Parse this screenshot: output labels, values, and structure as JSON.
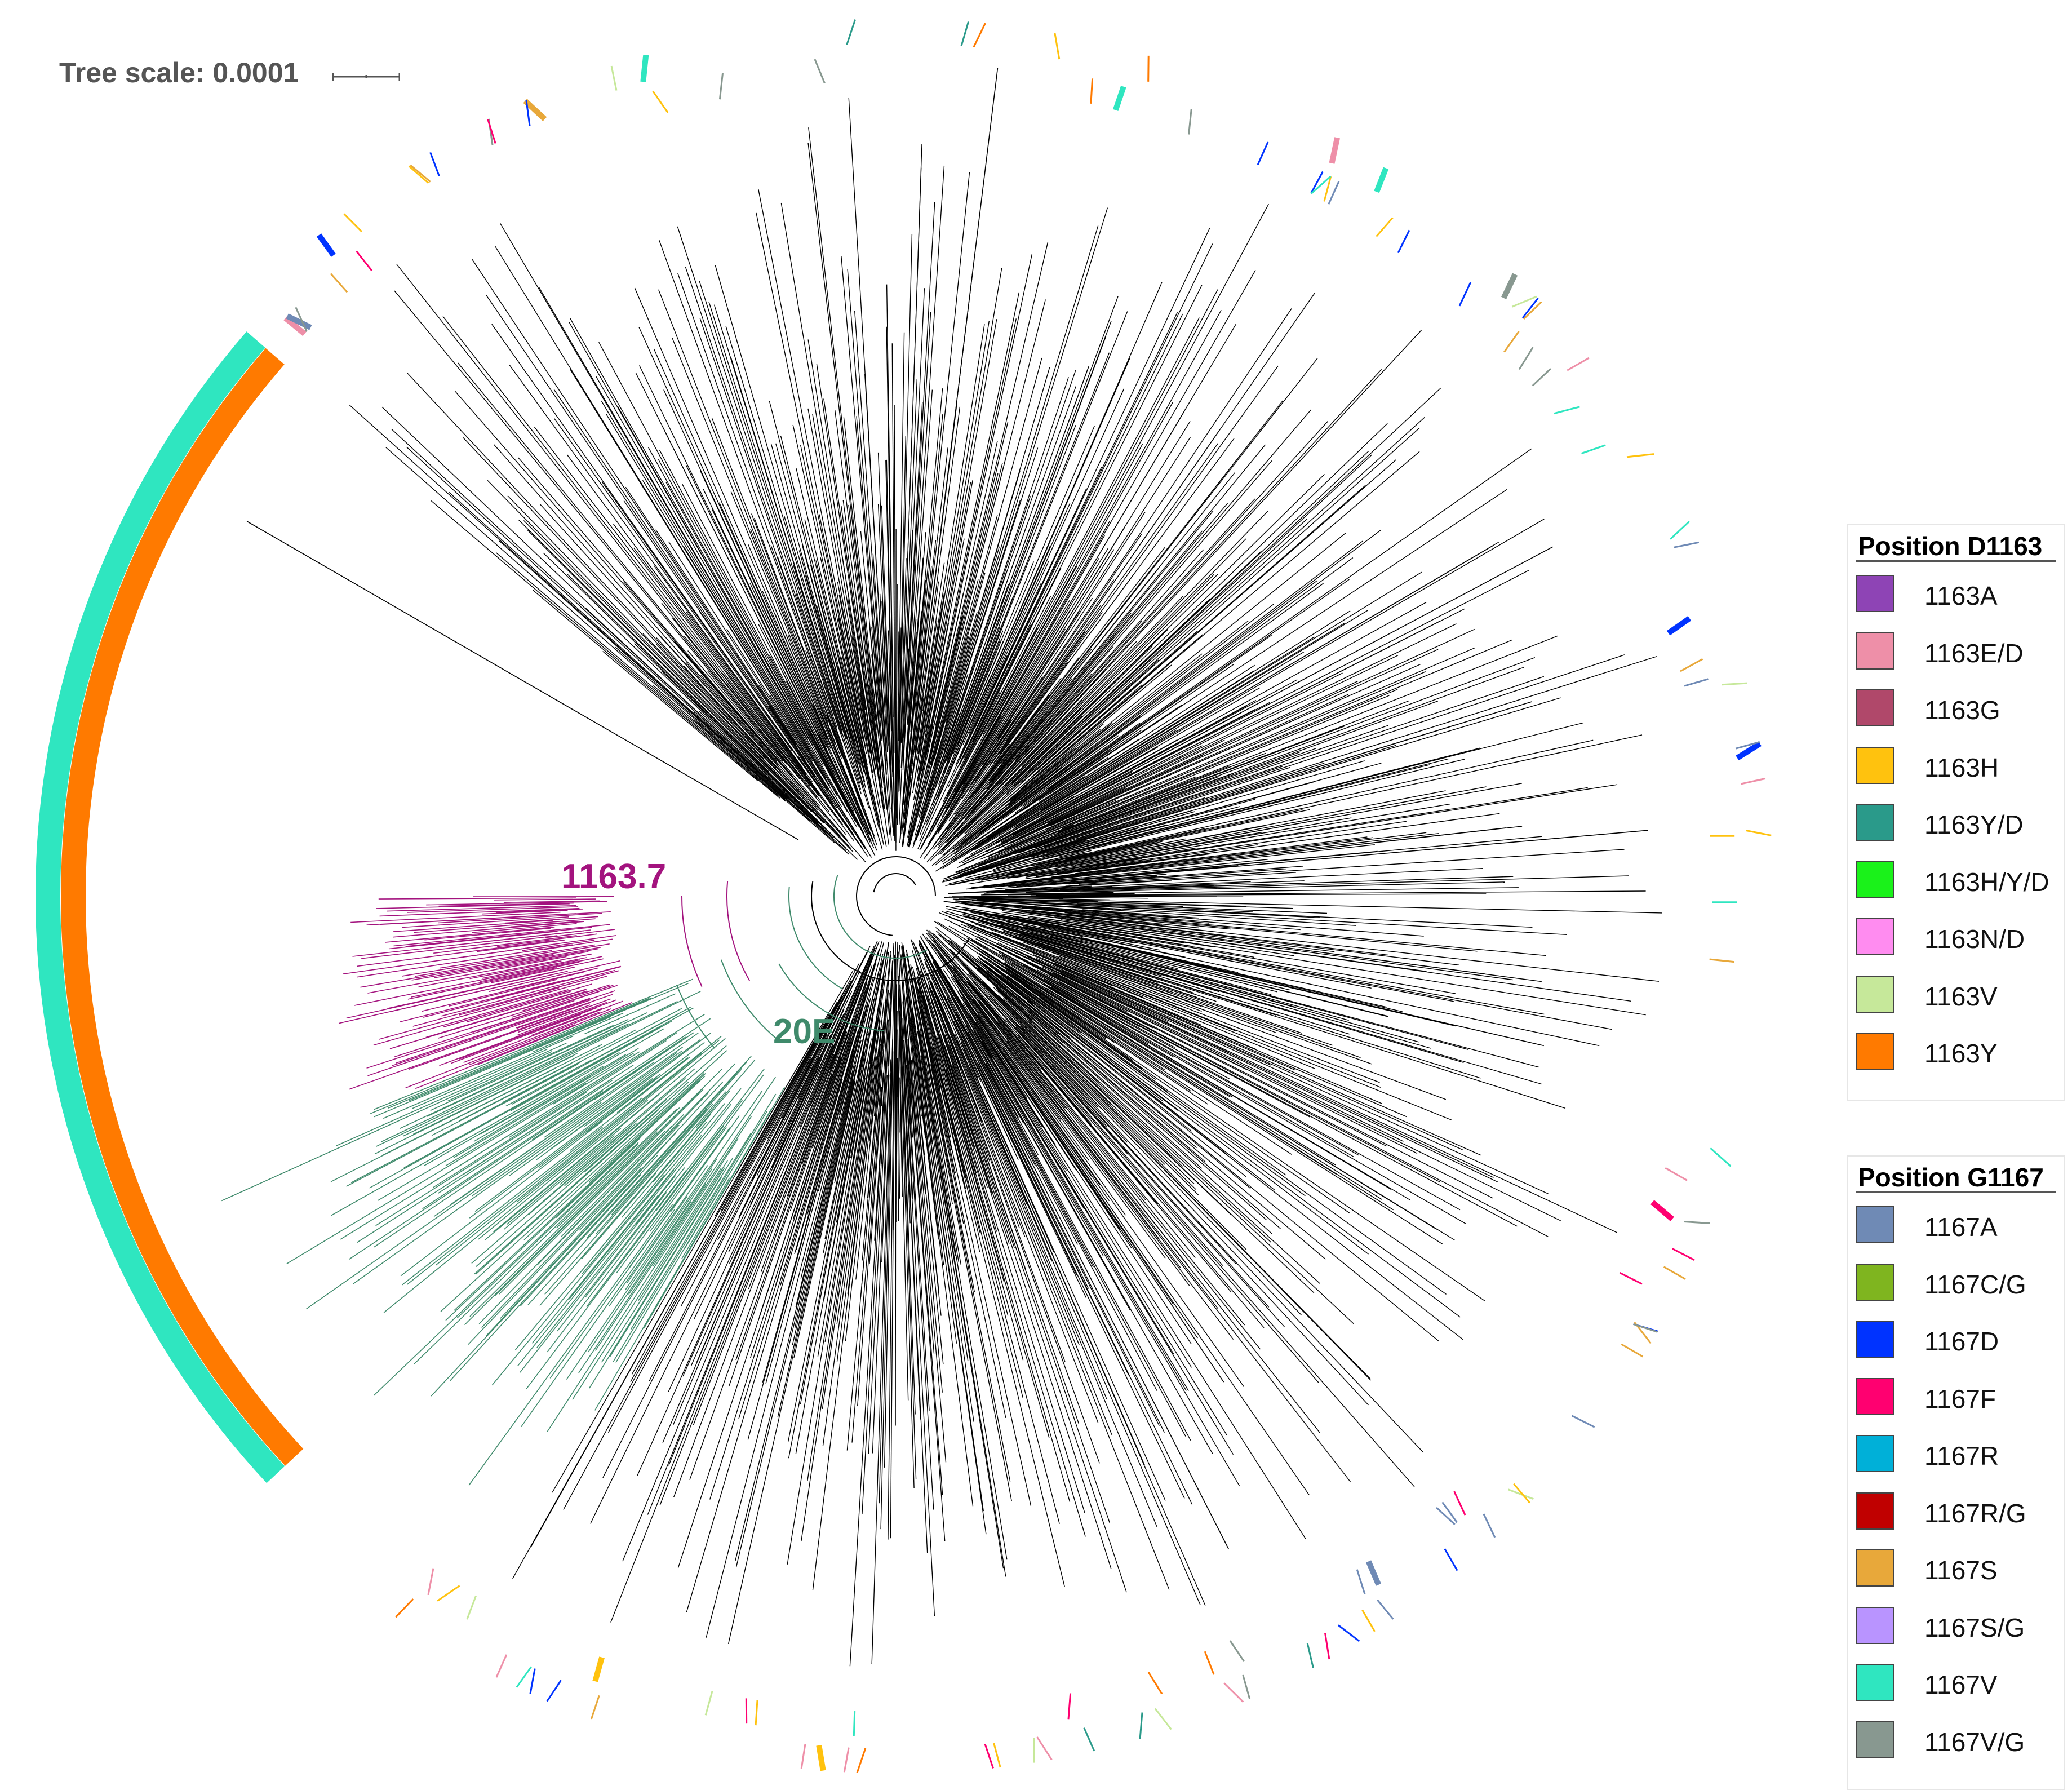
{
  "tree_scale": {
    "label": "Tree scale: 0.0001"
  },
  "clades": [
    {
      "label": "1163.7",
      "color": "#a3137e"
    },
    {
      "label": "20E",
      "color": "#3f8a6b"
    }
  ],
  "branch_colors": {
    "default": "#000000",
    "clade_1163_7": "#a3137e",
    "clade_20E": "#3f8a6b"
  },
  "legends": [
    {
      "title": "Position D1163",
      "items": [
        {
          "label": "1163A",
          "color": "#8e44b5"
        },
        {
          "label": "1163E/D",
          "color": "#ee8fa8"
        },
        {
          "label": "1163G",
          "color": "#b0486a"
        },
        {
          "label": "1163H",
          "color": "#ffc20e"
        },
        {
          "label": "1163Y/D",
          "color": "#2a9a8a"
        },
        {
          "label": "1163H/Y/D",
          "color": "#1af21a"
        },
        {
          "label": "1163N/D",
          "color": "#ff8cf0"
        },
        {
          "label": "1163V",
          "color": "#c6e89a"
        },
        {
          "label": "1163Y",
          "color": "#ff7a00"
        }
      ]
    },
    {
      "title": "Position G1167",
      "items": [
        {
          "label": "1167A",
          "color": "#6f8ab5"
        },
        {
          "label": "1167C/G",
          "color": "#7fb51f"
        },
        {
          "label": "1167D",
          "color": "#0033ff"
        },
        {
          "label": "1167F",
          "color": "#ff0070"
        },
        {
          "label": "1167R",
          "color": "#00b0d8"
        },
        {
          "label": "1167R/G",
          "color": "#c00000"
        },
        {
          "label": "1167S",
          "color": "#e8a83a"
        },
        {
          "label": "1167S/G",
          "color": "#b994ff"
        },
        {
          "label": "1167V",
          "color": "#2fe6c0"
        },
        {
          "label": "1167V/G",
          "color": "#889890"
        }
      ]
    }
  ]
}
